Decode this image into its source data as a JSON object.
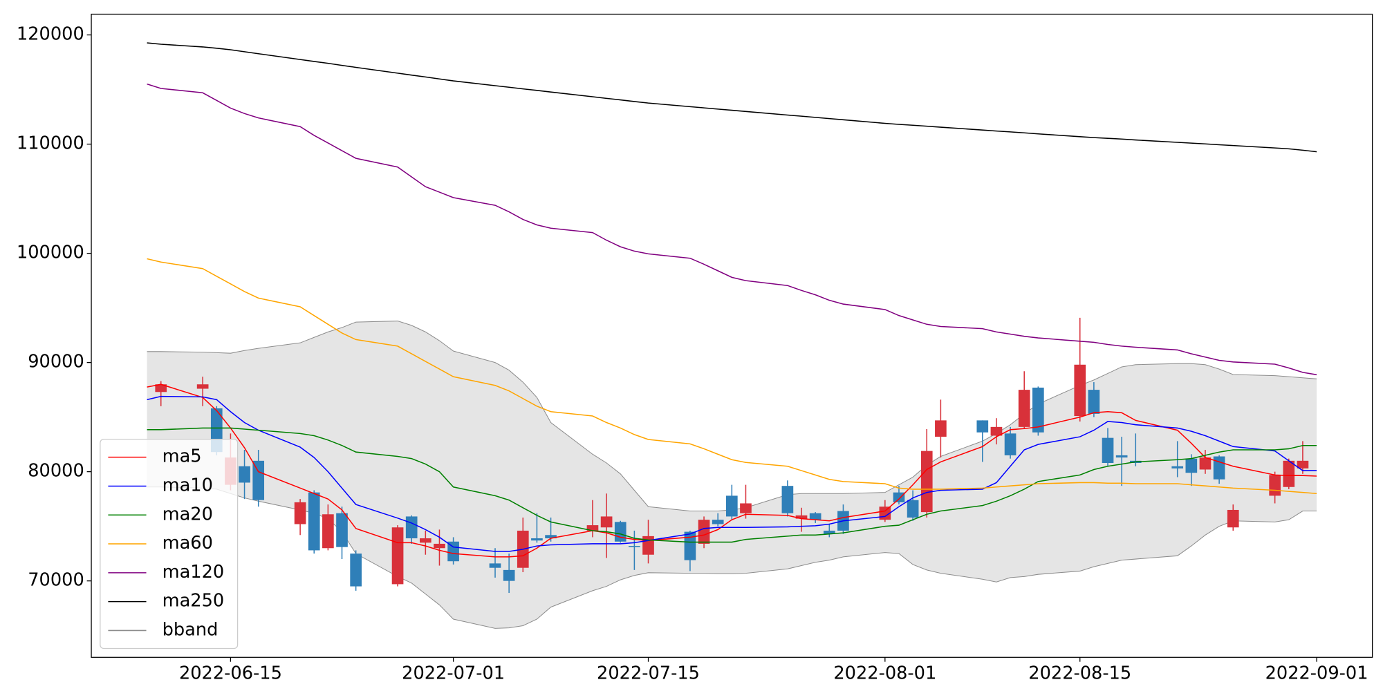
{
  "chart_data": {
    "type": "candlestick",
    "x": [
      "2022-06-09",
      "2022-06-10",
      "2022-06-13",
      "2022-06-14",
      "2022-06-15",
      "2022-06-16",
      "2022-06-17",
      "2022-06-20",
      "2022-06-21",
      "2022-06-22",
      "2022-06-23",
      "2022-06-24",
      "2022-06-27",
      "2022-06-28",
      "2022-06-29",
      "2022-06-30",
      "2022-07-01",
      "2022-07-04",
      "2022-07-05",
      "2022-07-06",
      "2022-07-07",
      "2022-07-08",
      "2022-07-11",
      "2022-07-12",
      "2022-07-13",
      "2022-07-14",
      "2022-07-15",
      "2022-07-18",
      "2022-07-19",
      "2022-07-20",
      "2022-07-21",
      "2022-07-22",
      "2022-07-25",
      "2022-07-26",
      "2022-07-27",
      "2022-07-28",
      "2022-07-29",
      "2022-08-01",
      "2022-08-02",
      "2022-08-03",
      "2022-08-04",
      "2022-08-05",
      "2022-08-08",
      "2022-08-09",
      "2022-08-10",
      "2022-08-11",
      "2022-08-12",
      "2022-08-15",
      "2022-08-16",
      "2022-08-17",
      "2022-08-18",
      "2022-08-19",
      "2022-08-22",
      "2022-08-23",
      "2022-08-24",
      "2022-08-25",
      "2022-08-26",
      "2022-08-29",
      "2022-08-30",
      "2022-08-31",
      "2022-09-01"
    ],
    "open": [
      null,
      87300,
      87600,
      85800,
      78800,
      80500,
      81000,
      75200,
      78100,
      73000,
      76200,
      72500,
      69700,
      75900,
      73500,
      73000,
      73600,
      71600,
      71000,
      71200,
      73900,
      74200,
      74600,
      74900,
      75400,
      73200,
      72400,
      74500,
      73400,
      75600,
      77800,
      76200,
      78700,
      75700,
      76200,
      74600,
      76400,
      75600,
      78100,
      77400,
      76300,
      83200,
      84700,
      83300,
      83500,
      84100,
      87700,
      85100,
      87500,
      83100,
      81500,
      81000,
      80500,
      81200,
      80200,
      81400,
      74900,
      77800,
      78600,
      80300,
      null
    ],
    "high": [
      null,
      88300,
      88700,
      86000,
      83500,
      82000,
      82000,
      77500,
      78300,
      77000,
      76800,
      72800,
      75100,
      76000,
      74600,
      74700,
      74000,
      73000,
      72500,
      75800,
      76200,
      75800,
      77400,
      78000,
      75500,
      74600,
      75600,
      74600,
      75900,
      76200,
      78800,
      78800,
      79200,
      76700,
      76300,
      75200,
      77000,
      77400,
      78700,
      78300,
      83900,
      86600,
      84700,
      84900,
      84100,
      89200,
      87800,
      94100,
      88200,
      84000,
      83200,
      83500,
      82800,
      81600,
      82000,
      81500,
      77000,
      80000,
      81200,
      82800,
      null
    ],
    "low": [
      null,
      86000,
      86000,
      81500,
      78300,
      77500,
      76800,
      74200,
      72500,
      72800,
      72000,
      69100,
      69500,
      73400,
      72400,
      71400,
      71500,
      70300,
      68900,
      70800,
      73500,
      73600,
      74000,
      72100,
      73500,
      71000,
      71600,
      70900,
      73000,
      75000,
      75600,
      75700,
      75900,
      74500,
      75300,
      74000,
      74300,
      75400,
      77000,
      75500,
      75800,
      81300,
      80900,
      82500,
      81200,
      84000,
      83300,
      84600,
      85000,
      80500,
      78700,
      80500,
      79500,
      78700,
      79800,
      78900,
      74600,
      77100,
      78400,
      79800,
      null
    ],
    "close": [
      null,
      88000,
      88000,
      81800,
      81300,
      79000,
      77400,
      77200,
      72800,
      76100,
      73100,
      69500,
      74900,
      73900,
      73900,
      73400,
      71800,
      71200,
      70000,
      74600,
      73700,
      73900,
      75100,
      75900,
      73600,
      73100,
      74100,
      71900,
      75600,
      75200,
      75900,
      77100,
      76200,
      76000,
      75600,
      74300,
      74600,
      76800,
      77200,
      75800,
      81900,
      84700,
      83600,
      84100,
      81500,
      87500,
      83600,
      89800,
      85300,
      80800,
      81300,
      80800,
      80300,
      79900,
      81300,
      79300,
      76500,
      79700,
      81000,
      81000,
      null
    ],
    "up_color": "#d8313a",
    "down_color": "#2f7fb8",
    "series": [
      {
        "name": "ma5",
        "color": "#ff0000",
        "values": [
          87750,
          88000,
          86800,
          85600,
          84000,
          82200,
          80000,
          78500,
          78000,
          77500,
          76500,
          74800,
          73500,
          73500,
          73200,
          72800,
          72500,
          72200,
          72200,
          72300,
          73000,
          73900,
          74600,
          74400,
          74000,
          73800,
          73700,
          74000,
          74200,
          74700,
          75600,
          76100,
          76000,
          75700,
          75600,
          75500,
          75800,
          76400,
          77500,
          78800,
          80200,
          80900,
          82300,
          83200,
          83850,
          83950,
          84100,
          85000,
          85400,
          85500,
          85400,
          84700,
          83800,
          82600,
          81300,
          80900,
          80500,
          79700,
          79650,
          79650,
          79600
        ]
      },
      {
        "name": "ma10",
        "color": "#0000ff",
        "values": [
          86600,
          86900,
          86850,
          86600,
          85500,
          84500,
          83800,
          82250,
          81300,
          80000,
          78500,
          77000,
          75750,
          75300,
          74700,
          74000,
          73100,
          72700,
          72700,
          72900,
          73200,
          73300,
          73400,
          73400,
          73400,
          73500,
          73700,
          74300,
          74800,
          74900,
          74900,
          74900,
          74950,
          75000,
          75050,
          75200,
          75500,
          75900,
          76800,
          77600,
          78100,
          78300,
          78400,
          79000,
          80500,
          82000,
          82500,
          83200,
          83800,
          84600,
          84500,
          84300,
          84000,
          83700,
          83300,
          82800,
          82300,
          81900,
          81000,
          80100,
          80100
        ]
      },
      {
        "name": "ma20",
        "color": "#008000",
        "values": [
          83850,
          83850,
          84000,
          84000,
          84000,
          83900,
          83800,
          83500,
          83300,
          82900,
          82400,
          81800,
          81400,
          81200,
          80700,
          80000,
          78600,
          77800,
          77400,
          76700,
          76000,
          75400,
          74600,
          74500,
          74300,
          73900,
          73750,
          73550,
          73550,
          73550,
          73550,
          73800,
          74100,
          74200,
          74200,
          74300,
          74400,
          75000,
          75100,
          75600,
          76100,
          76400,
          76900,
          77300,
          77800,
          78400,
          79100,
          79700,
          80200,
          80500,
          80700,
          80900,
          81100,
          81200,
          81500,
          81800,
          82000,
          82000,
          82100,
          82400,
          82400
        ]
      },
      {
        "name": "ma60",
        "color": "#ffa500",
        "values": [
          99500,
          99200,
          98600,
          97900,
          97200,
          96500,
          95900,
          95100,
          94300,
          93500,
          92700,
          92100,
          91500,
          90800,
          90100,
          89400,
          88700,
          87900,
          87400,
          86700,
          86000,
          85500,
          85100,
          84500,
          84000,
          83400,
          82950,
          82550,
          82100,
          81600,
          81100,
          80850,
          80500,
          80100,
          79700,
          79300,
          79100,
          78900,
          78500,
          78400,
          78400,
          78400,
          78500,
          78600,
          78700,
          78800,
          78900,
          79000,
          79000,
          78950,
          78950,
          78900,
          78900,
          78800,
          78700,
          78600,
          78500,
          78300,
          78200,
          78100,
          78000
        ]
      },
      {
        "name": "ma120",
        "color": "#800080",
        "values": [
          115500,
          115100,
          114700,
          114000,
          113300,
          112800,
          112400,
          111600,
          110800,
          110100,
          109400,
          108700,
          107900,
          107000,
          106100,
          105600,
          105100,
          104400,
          103800,
          103100,
          102600,
          102300,
          101900,
          101200,
          100600,
          100200,
          99950,
          99550,
          99000,
          98400,
          97800,
          97500,
          97050,
          96600,
          96200,
          95700,
          95350,
          94850,
          94300,
          93900,
          93500,
          93300,
          93100,
          92800,
          92600,
          92400,
          92250,
          91950,
          91850,
          91650,
          91500,
          91400,
          91150,
          90800,
          90500,
          90200,
          90050,
          89850,
          89500,
          89100,
          88880
        ]
      },
      {
        "name": "ma250",
        "color": "#000000",
        "values": [
          119270,
          119150,
          118900,
          118780,
          118640,
          118460,
          118280,
          117750,
          117570,
          117400,
          117210,
          117030,
          116500,
          116320,
          116150,
          115970,
          115790,
          115350,
          115210,
          115060,
          114920,
          114770,
          114340,
          114190,
          114050,
          113900,
          113760,
          113430,
          113320,
          113210,
          113100,
          112990,
          112660,
          112560,
          112450,
          112340,
          112230,
          111900,
          111810,
          111730,
          111640,
          111550,
          111290,
          111200,
          111120,
          111030,
          110940,
          110680,
          110600,
          110530,
          110460,
          110380,
          110160,
          110090,
          110020,
          109940,
          109870,
          109650,
          109570,
          109440,
          109300
        ]
      }
    ],
    "bband": {
      "name": "bband",
      "color": "#8c8c8c",
      "fill": "#e5e5e5",
      "upper": [
        91000,
        91000,
        90950,
        90900,
        90850,
        91100,
        91300,
        91800,
        92300,
        92800,
        93200,
        93700,
        93800,
        93400,
        92800,
        92000,
        91050,
        90000,
        89300,
        88200,
        86800,
        84500,
        81600,
        80800,
        79800,
        78300,
        76800,
        76400,
        76400,
        76400,
        76500,
        76700,
        77900,
        78000,
        78000,
        78000,
        78000,
        78100,
        78800,
        79500,
        80600,
        81400,
        82800,
        83500,
        84300,
        85300,
        86200,
        87900,
        88400,
        89000,
        89600,
        89800,
        89900,
        89900,
        89800,
        89400,
        88900,
        88800,
        88700,
        88600,
        88500
      ],
      "lower": [
        78600,
        78600,
        78500,
        78400,
        78000,
        77600,
        77300,
        76500,
        76200,
        75700,
        74500,
        72500,
        70400,
        69800,
        68800,
        67800,
        66500,
        65650,
        65700,
        65900,
        66500,
        67600,
        69100,
        69500,
        70100,
        70500,
        70750,
        70700,
        70700,
        70650,
        70650,
        70700,
        71100,
        71400,
        71700,
        71900,
        72200,
        72600,
        72500,
        71500,
        71000,
        70700,
        70150,
        69900,
        70300,
        70400,
        70600,
        70900,
        71300,
        71600,
        71900,
        72000,
        72300,
        73200,
        74200,
        75000,
        75500,
        75400,
        75600,
        76400,
        76400
      ]
    },
    "xlim": [
      "2022-06-05",
      "2022-09-05"
    ],
    "ylim": [
      63000,
      121900
    ],
    "xticks": [
      "2022-06-15",
      "2022-07-01",
      "2022-07-15",
      "2022-08-01",
      "2022-08-15",
      "2022-09-01"
    ],
    "yticks": [
      70000,
      80000,
      90000,
      100000,
      110000,
      120000
    ],
    "legend": "lower left"
  }
}
